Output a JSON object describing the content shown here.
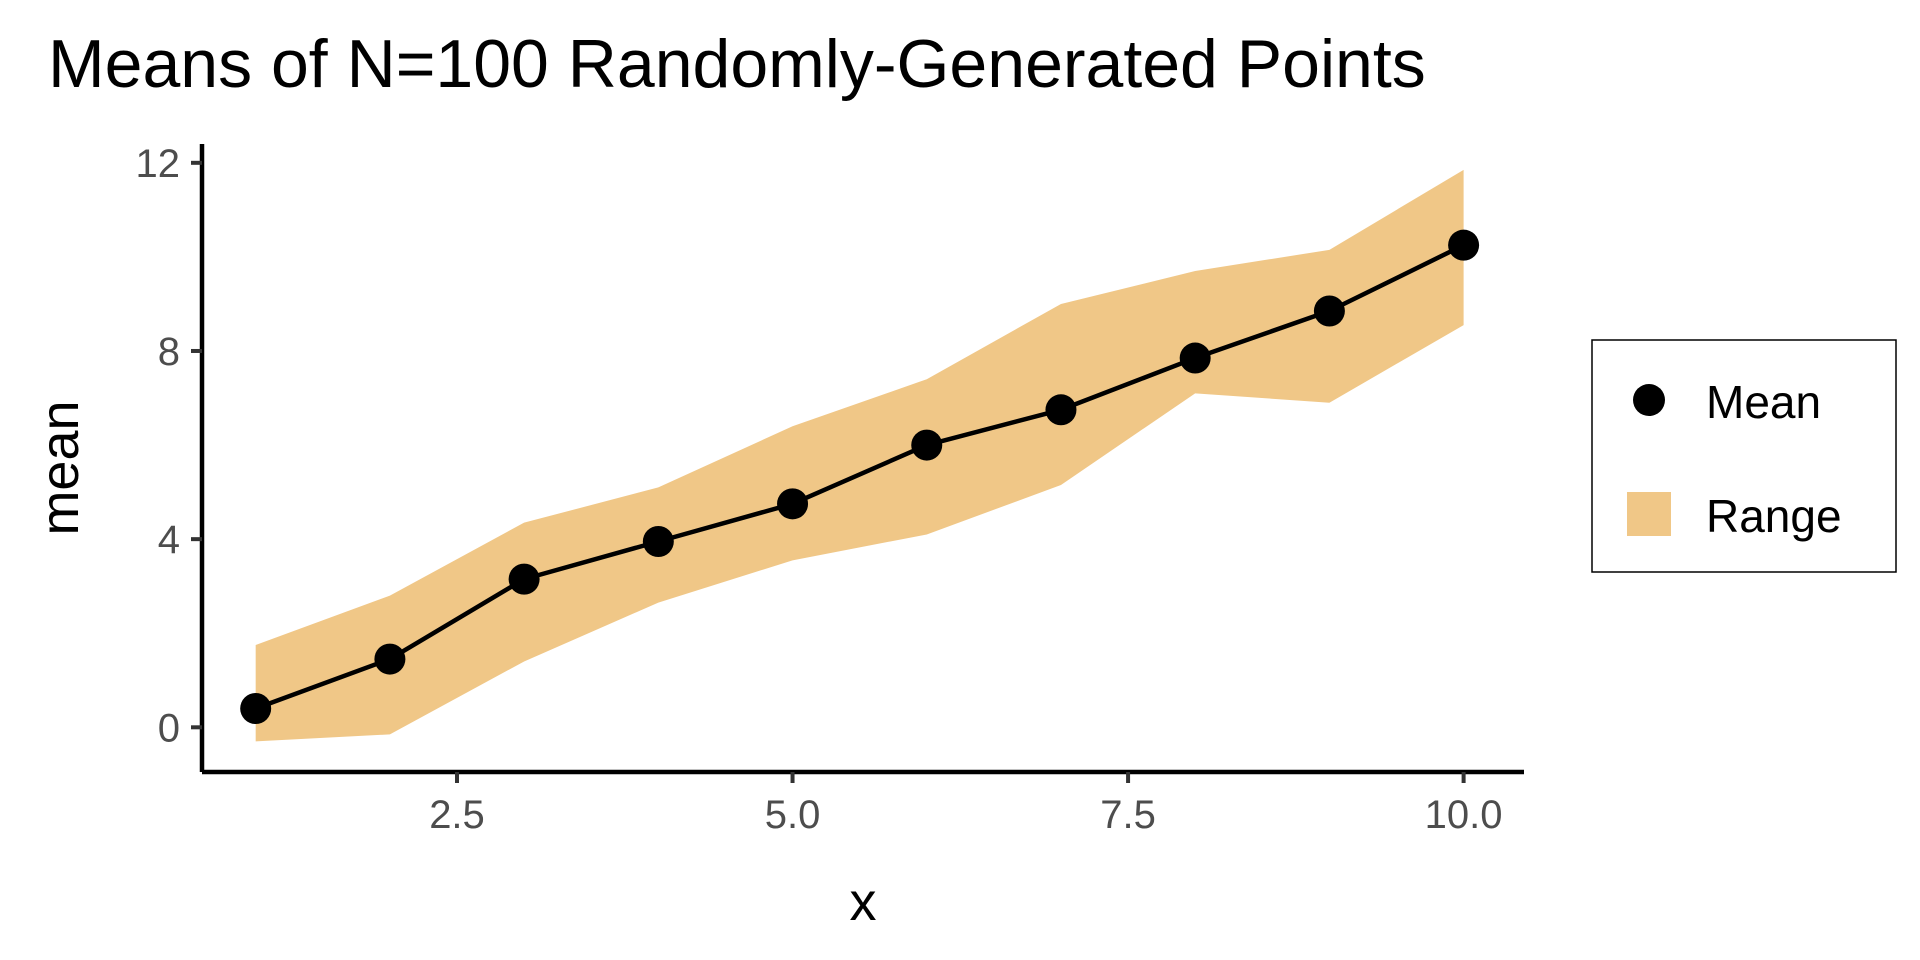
{
  "chart_data": {
    "type": "line",
    "title": "Means of N=100 Randomly-Generated Points",
    "xlabel": "x",
    "ylabel": "mean",
    "xlim": [
      0.6,
      10.45
    ],
    "ylim": [
      -0.95,
      12.4
    ],
    "x_ticks": [
      2.5,
      5.0,
      7.5,
      10.0
    ],
    "x_tick_labels": [
      "2.5",
      "5.0",
      "7.5",
      "10.0"
    ],
    "y_ticks": [
      0,
      4,
      8,
      12
    ],
    "y_tick_labels": [
      "0",
      "4",
      "8",
      "12"
    ],
    "x": [
      1,
      2,
      3,
      4,
      5,
      6,
      7,
      8,
      9,
      10
    ],
    "series": [
      {
        "name": "Mean",
        "kind": "line+points",
        "color": "#000000",
        "values": [
          0.4,
          1.45,
          3.15,
          3.95,
          4.75,
          6.0,
          6.75,
          7.85,
          8.85,
          10.25
        ]
      },
      {
        "name": "Range",
        "kind": "ribbon",
        "color": "#f0c787",
        "lower": [
          -0.3,
          -0.15,
          1.4,
          2.65,
          3.55,
          4.1,
          5.15,
          7.1,
          6.9,
          8.55
        ],
        "upper": [
          1.75,
          2.8,
          4.35,
          5.1,
          6.4,
          7.4,
          9.0,
          9.7,
          10.15,
          11.85
        ]
      }
    ],
    "grid": false,
    "legend": {
      "position": "right",
      "items": [
        {
          "label": "Mean",
          "symbol": "point",
          "color": "#000000"
        },
        {
          "label": "Range",
          "symbol": "square",
          "color": "#f0c787"
        }
      ]
    }
  }
}
